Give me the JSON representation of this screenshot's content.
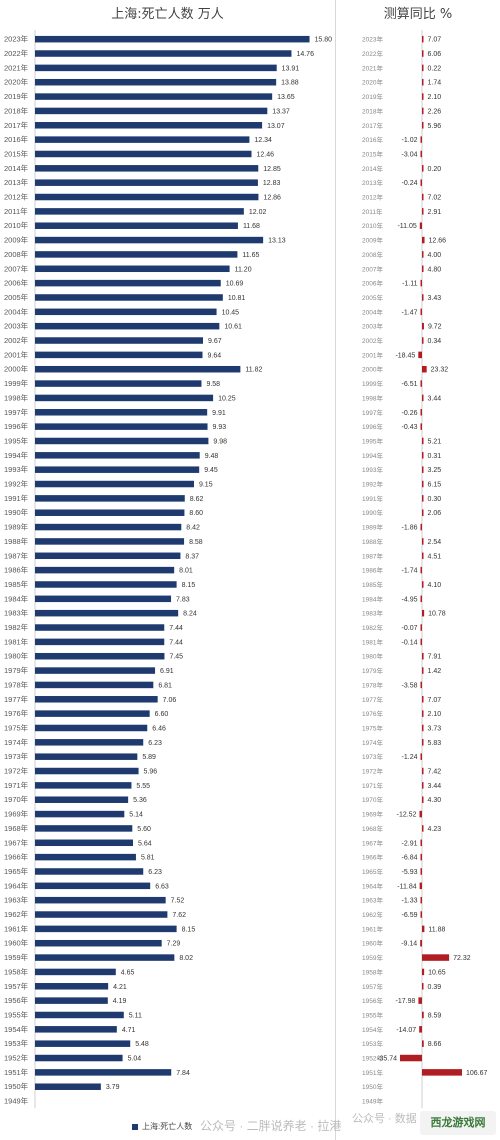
{
  "chart_data": [
    {
      "type": "bar",
      "title": "上海:死亡人数 万人",
      "legend": "上海:死亡人数",
      "categories": [
        "2023年",
        "2022年",
        "2021年",
        "2020年",
        "2019年",
        "2018年",
        "2017年",
        "2016年",
        "2015年",
        "2014年",
        "2013年",
        "2012年",
        "2011年",
        "2010年",
        "2009年",
        "2008年",
        "2007年",
        "2006年",
        "2005年",
        "2004年",
        "2003年",
        "2002年",
        "2001年",
        "2000年",
        "1999年",
        "1998年",
        "1997年",
        "1996年",
        "1995年",
        "1994年",
        "1993年",
        "1992年",
        "1991年",
        "1990年",
        "1989年",
        "1988年",
        "1987年",
        "1986年",
        "1985年",
        "1984年",
        "1983年",
        "1982年",
        "1981年",
        "1980年",
        "1979年",
        "1978年",
        "1977年",
        "1976年",
        "1975年",
        "1974年",
        "1973年",
        "1972年",
        "1971年",
        "1970年",
        "1969年",
        "1968年",
        "1967年",
        "1966年",
        "1965年",
        "1964年",
        "1963年",
        "1962年",
        "1961年",
        "1960年",
        "1959年",
        "1958年",
        "1957年",
        "1956年",
        "1955年",
        "1954年",
        "1953年",
        "1952年",
        "1951年",
        "1950年",
        "1949年"
      ],
      "values": [
        15.8,
        14.76,
        13.91,
        13.88,
        13.65,
        13.37,
        13.07,
        12.34,
        12.46,
        12.85,
        12.83,
        12.86,
        12.02,
        11.68,
        13.13,
        11.65,
        11.2,
        10.69,
        10.81,
        10.45,
        10.61,
        9.67,
        9.64,
        11.82,
        9.58,
        10.25,
        9.91,
        9.93,
        9.98,
        9.48,
        9.45,
        9.15,
        8.62,
        8.6,
        8.42,
        8.58,
        8.37,
        8.01,
        8.15,
        7.83,
        8.24,
        7.44,
        7.44,
        7.45,
        6.91,
        6.81,
        7.06,
        6.6,
        6.46,
        6.23,
        5.89,
        5.96,
        5.55,
        5.36,
        5.14,
        5.6,
        5.64,
        5.81,
        6.23,
        6.63,
        7.52,
        7.62,
        8.15,
        7.29,
        8.02,
        4.65,
        4.21,
        4.19,
        5.11,
        4.71,
        5.48,
        5.04,
        7.84,
        3.79,
        null
      ],
      "xlim": [
        0,
        16
      ]
    },
    {
      "type": "bar",
      "title": "测算同比 %",
      "categories": [
        "2023年",
        "2022年",
        "2021年",
        "2020年",
        "2019年",
        "2018年",
        "2017年",
        "2016年",
        "2015年",
        "2014年",
        "2013年",
        "2012年",
        "2011年",
        "2010年",
        "2009年",
        "2008年",
        "2007年",
        "2006年",
        "2005年",
        "2004年",
        "2003年",
        "2002年",
        "2001年",
        "2000年",
        "1999年",
        "1998年",
        "1997年",
        "1996年",
        "1995年",
        "1994年",
        "1993年",
        "1992年",
        "1991年",
        "1990年",
        "1989年",
        "1988年",
        "1987年",
        "1986年",
        "1985年",
        "1984年",
        "1983年",
        "1982年",
        "1981年",
        "1980年",
        "1979年",
        "1978年",
        "1977年",
        "1976年",
        "1975年",
        "1974年",
        "1973年",
        "1972年",
        "1971年",
        "1970年",
        "1969年",
        "1968年",
        "1967年",
        "1966年",
        "1965年",
        "1964年",
        "1963年",
        "1962年",
        "1961年",
        "1960年",
        "1959年",
        "1958年",
        "1957年",
        "1956年",
        "1955年",
        "1954年",
        "1953年",
        "1952年",
        "1951年",
        "1950年",
        "1949年"
      ],
      "values": [
        7.07,
        6.06,
        0.22,
        1.74,
        2.1,
        2.26,
        5.96,
        -1.02,
        -3.04,
        0.2,
        -0.24,
        7.02,
        2.91,
        -11.05,
        12.66,
        4.0,
        4.8,
        -1.11,
        3.43,
        -1.47,
        9.72,
        0.34,
        -18.45,
        23.32,
        -6.51,
        3.44,
        -0.26,
        -0.43,
        5.21,
        0.31,
        3.25,
        6.15,
        0.3,
        2.06,
        -1.86,
        2.54,
        4.51,
        -1.74,
        4.1,
        -4.95,
        10.78,
        -0.07,
        -0.14,
        7.91,
        1.42,
        -3.58,
        7.07,
        2.1,
        3.73,
        5.83,
        -1.24,
        7.42,
        3.44,
        4.3,
        -12.52,
        4.23,
        -2.91,
        -6.84,
        -5.93,
        -11.84,
        -1.33,
        -6.59,
        11.88,
        -9.14,
        72.32,
        10.65,
        0.39,
        -17.98,
        8.59,
        -14.07,
        8.66,
        -35.74,
        106.67,
        null,
        null
      ]
    }
  ],
  "colors": {
    "bar": "#1f3a6e",
    "yoy": "#b01d23"
  },
  "watermark": "公众号 · 二胖说养老 · 拉港",
  "watermark2": "公众号 · 数据",
  "logo_text": "西龙游戏网"
}
